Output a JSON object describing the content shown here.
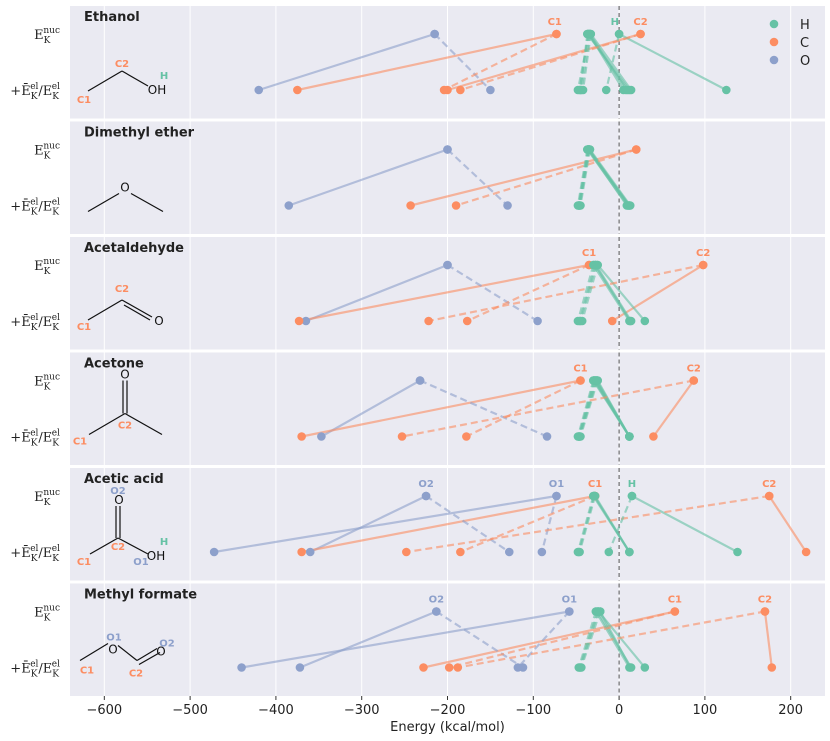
{
  "chart_data": {
    "type": "scatter",
    "xlabel": "Energy (kcal/mol)",
    "xlim": [
      -640,
      240
    ],
    "xticks": [
      -600,
      -500,
      -400,
      -300,
      -200,
      -100,
      0,
      100,
      200
    ],
    "xtick_labels": [
      "−600",
      "−500",
      "−400",
      "−300",
      "−200",
      "−100",
      "0",
      "100",
      "200"
    ],
    "row_labels": {
      "top": {
        "base": "E",
        "sub": "K",
        "sup": "nuc"
      },
      "bottom": {
        "prefix": "+",
        "base1": "Ē",
        "sub1": "K",
        "sup1": "el",
        "slash": "/",
        "base2": "E",
        "sub2": "K",
        "sup2": "el"
      }
    },
    "legend": [
      {
        "label": "H",
        "color": "#66c2a5"
      },
      {
        "label": "C",
        "color": "#fc8d62"
      },
      {
        "label": "O",
        "color": "#8da0cb"
      }
    ],
    "panels": [
      {
        "title": "Ethanol",
        "molecule_labels": [
          {
            "text": "C1",
            "color": "#fc8d62"
          },
          {
            "text": "C2",
            "color": "#fc8d62"
          },
          {
            "text": "H",
            "color": "#66c2a5"
          },
          {
            "text": "OH",
            "color": "#111111"
          }
        ],
        "point_labels": [
          {
            "text": "C1",
            "color": "#fc8d62",
            "x": -75
          },
          {
            "text": "H",
            "color": "#66c2a5",
            "x": -5
          },
          {
            "text": "C2",
            "color": "#fc8d62",
            "x": 25
          }
        ],
        "solid": [
          {
            "el": "O",
            "top": -215,
            "bottom": -420
          },
          {
            "el": "C",
            "top": -73,
            "bottom": -375
          },
          {
            "el": "C",
            "top": 25,
            "bottom": -200
          },
          {
            "el": "H",
            "top": -35,
            "bottom": 5
          },
          {
            "el": "H",
            "top": -36,
            "bottom": 10
          },
          {
            "el": "H",
            "top": -37,
            "bottom": 12
          },
          {
            "el": "H",
            "top": -34,
            "bottom": 8
          },
          {
            "el": "H",
            "top": -33,
            "bottom": 14
          },
          {
            "el": "H",
            "top": 0,
            "bottom": 125
          }
        ],
        "dashed": [
          {
            "el": "O",
            "top": -215,
            "bottom": -150
          },
          {
            "el": "C",
            "top": -73,
            "bottom": -204
          },
          {
            "el": "C",
            "top": 25,
            "bottom": -185
          },
          {
            "el": "H",
            "top": -35,
            "bottom": -48
          },
          {
            "el": "H",
            "top": -36,
            "bottom": -46
          },
          {
            "el": "H",
            "top": -37,
            "bottom": -45
          },
          {
            "el": "H",
            "top": -34,
            "bottom": -44
          },
          {
            "el": "H",
            "top": -33,
            "bottom": -42
          },
          {
            "el": "H",
            "top": 0,
            "bottom": -15
          }
        ]
      },
      {
        "title": "Dimethyl ether",
        "molecule_labels": [
          {
            "text": "O",
            "color": "#111111"
          }
        ],
        "point_labels": [],
        "solid": [
          {
            "el": "O",
            "top": -200,
            "bottom": -385
          },
          {
            "el": "C",
            "top": 20,
            "bottom": -243
          },
          {
            "el": "H",
            "top": -37,
            "bottom": 10
          },
          {
            "el": "H",
            "top": -36,
            "bottom": 12
          },
          {
            "el": "H",
            "top": -35,
            "bottom": 11
          },
          {
            "el": "H",
            "top": -34,
            "bottom": 13
          },
          {
            "el": "H",
            "top": -36,
            "bottom": 9
          },
          {
            "el": "H",
            "top": -35,
            "bottom": 12
          }
        ],
        "dashed": [
          {
            "el": "O",
            "top": -200,
            "bottom": -130
          },
          {
            "el": "C",
            "top": 20,
            "bottom": -190
          },
          {
            "el": "H",
            "top": -37,
            "bottom": -48
          },
          {
            "el": "H",
            "top": -36,
            "bottom": -47
          },
          {
            "el": "H",
            "top": -35,
            "bottom": -46
          },
          {
            "el": "H",
            "top": -34,
            "bottom": -45
          },
          {
            "el": "H",
            "top": -36,
            "bottom": -47
          },
          {
            "el": "H",
            "top": -35,
            "bottom": -46
          }
        ]
      },
      {
        "title": "Acetaldehyde",
        "molecule_labels": [
          {
            "text": "C1",
            "color": "#fc8d62"
          },
          {
            "text": "C2",
            "color": "#fc8d62"
          },
          {
            "text": "O",
            "color": "#111111"
          }
        ],
        "point_labels": [
          {
            "text": "C1",
            "color": "#fc8d62",
            "x": -35
          },
          {
            "text": "C2",
            "color": "#fc8d62",
            "x": 98
          }
        ],
        "solid": [
          {
            "el": "O",
            "top": -200,
            "bottom": -365
          },
          {
            "el": "C",
            "top": -35,
            "bottom": -373
          },
          {
            "el": "C",
            "top": 98,
            "bottom": -8
          },
          {
            "el": "H",
            "top": -30,
            "bottom": 12
          },
          {
            "el": "H",
            "top": -28,
            "bottom": 13
          },
          {
            "el": "H",
            "top": -27,
            "bottom": 14
          },
          {
            "el": "H",
            "top": -25,
            "bottom": 30
          }
        ],
        "dashed": [
          {
            "el": "O",
            "top": -200,
            "bottom": -95
          },
          {
            "el": "C",
            "top": -35,
            "bottom": -177
          },
          {
            "el": "C",
            "top": 98,
            "bottom": -222
          },
          {
            "el": "H",
            "top": -30,
            "bottom": -48
          },
          {
            "el": "H",
            "top": -28,
            "bottom": -46
          },
          {
            "el": "H",
            "top": -27,
            "bottom": -45
          },
          {
            "el": "H",
            "top": -25,
            "bottom": -43
          }
        ]
      },
      {
        "title": "Acetone",
        "molecule_labels": [
          {
            "text": "C1",
            "color": "#fc8d62"
          },
          {
            "text": "C2",
            "color": "#fc8d62"
          },
          {
            "text": "O",
            "color": "#111111"
          }
        ],
        "point_labels": [
          {
            "text": "C1",
            "color": "#fc8d62",
            "x": -45
          },
          {
            "text": "C2",
            "color": "#fc8d62",
            "x": 87
          }
        ],
        "solid": [
          {
            "el": "O",
            "top": -232,
            "bottom": -347
          },
          {
            "el": "C",
            "top": -45,
            "bottom": -370
          },
          {
            "el": "C",
            "top": 87,
            "bottom": 40
          },
          {
            "el": "H",
            "top": -30,
            "bottom": 12
          },
          {
            "el": "H",
            "top": -29,
            "bottom": 12
          },
          {
            "el": "H",
            "top": -28,
            "bottom": 12
          },
          {
            "el": "H",
            "top": -27,
            "bottom": 12
          },
          {
            "el": "H",
            "top": -26,
            "bottom": 12
          },
          {
            "el": "H",
            "top": -25,
            "bottom": 12
          }
        ],
        "dashed": [
          {
            "el": "O",
            "top": -232,
            "bottom": -84
          },
          {
            "el": "C",
            "top": -45,
            "bottom": -178
          },
          {
            "el": "C",
            "top": 87,
            "bottom": -253
          },
          {
            "el": "H",
            "top": -30,
            "bottom": -48
          },
          {
            "el": "H",
            "top": -29,
            "bottom": -47
          },
          {
            "el": "H",
            "top": -28,
            "bottom": -47
          },
          {
            "el": "H",
            "top": -27,
            "bottom": -46
          },
          {
            "el": "H",
            "top": -26,
            "bottom": -46
          },
          {
            "el": "H",
            "top": -25,
            "bottom": -45
          }
        ]
      },
      {
        "title": "Acetic acid",
        "molecule_labels": [
          {
            "text": "O2",
            "color": "#8da0cb"
          },
          {
            "text": "O",
            "color": "#111111"
          },
          {
            "text": "C2",
            "color": "#fc8d62"
          },
          {
            "text": "OH",
            "color": "#111111"
          },
          {
            "text": "H",
            "color": "#66c2a5"
          },
          {
            "text": "C1",
            "color": "#fc8d62"
          },
          {
            "text": "O1",
            "color": "#8da0cb"
          }
        ],
        "point_labels": [
          {
            "text": "O2",
            "color": "#8da0cb",
            "x": -225
          },
          {
            "text": "O1",
            "color": "#8da0cb",
            "x": -73
          },
          {
            "text": "C1",
            "color": "#fc8d62",
            "x": -28
          },
          {
            "text": "H",
            "color": "#66c2a5",
            "x": 15
          },
          {
            "text": "C2",
            "color": "#fc8d62",
            "x": 175
          }
        ],
        "solid": [
          {
            "el": "O",
            "top": -73,
            "bottom": -472
          },
          {
            "el": "O",
            "top": -225,
            "bottom": -360
          },
          {
            "el": "C",
            "top": -28,
            "bottom": -370
          },
          {
            "el": "C",
            "top": 175,
            "bottom": 218
          },
          {
            "el": "H",
            "top": -30,
            "bottom": 12
          },
          {
            "el": "H",
            "top": -29,
            "bottom": 12
          },
          {
            "el": "H",
            "top": -28,
            "bottom": 12
          },
          {
            "el": "H",
            "top": 15,
            "bottom": 138
          }
        ],
        "dashed": [
          {
            "el": "O",
            "top": -225,
            "bottom": -128
          },
          {
            "el": "O",
            "top": -73,
            "bottom": -90
          },
          {
            "el": "C",
            "top": -28,
            "bottom": -185
          },
          {
            "el": "C",
            "top": 175,
            "bottom": -248
          },
          {
            "el": "H",
            "top": -30,
            "bottom": -48
          },
          {
            "el": "H",
            "top": -29,
            "bottom": -47
          },
          {
            "el": "H",
            "top": -28,
            "bottom": -46
          },
          {
            "el": "H",
            "top": 15,
            "bottom": -12
          }
        ]
      },
      {
        "title": "Methyl formate",
        "molecule_labels": [
          {
            "text": "O1",
            "color": "#8da0cb"
          },
          {
            "text": "O",
            "color": "#111111"
          },
          {
            "text": "O2",
            "color": "#8da0cb"
          },
          {
            "text": "O",
            "color": "#111111"
          },
          {
            "text": "C1",
            "color": "#fc8d62"
          },
          {
            "text": "C2",
            "color": "#fc8d62"
          }
        ],
        "point_labels": [
          {
            "text": "O2",
            "color": "#8da0cb",
            "x": -213
          },
          {
            "text": "O1",
            "color": "#8da0cb",
            "x": -58
          },
          {
            "text": "C1",
            "color": "#fc8d62",
            "x": 65
          },
          {
            "text": "C2",
            "color": "#fc8d62",
            "x": 170
          }
        ],
        "solid": [
          {
            "el": "O",
            "top": -58,
            "bottom": -440
          },
          {
            "el": "O",
            "top": -213,
            "bottom": -372
          },
          {
            "el": "C",
            "top": 65,
            "bottom": -228
          },
          {
            "el": "C",
            "top": 170,
            "bottom": 178
          },
          {
            "el": "H",
            "top": -27,
            "bottom": 12
          },
          {
            "el": "H",
            "top": -25,
            "bottom": 14
          },
          {
            "el": "H",
            "top": -24,
            "bottom": 30
          },
          {
            "el": "H",
            "top": -22,
            "bottom": 13
          }
        ],
        "dashed": [
          {
            "el": "O",
            "top": -213,
            "bottom": -112
          },
          {
            "el": "O",
            "top": -58,
            "bottom": -118
          },
          {
            "el": "C",
            "top": 65,
            "bottom": -198
          },
          {
            "el": "C",
            "top": 170,
            "bottom": -188
          },
          {
            "el": "H",
            "top": -27,
            "bottom": -47
          },
          {
            "el": "H",
            "top": -25,
            "bottom": -46
          },
          {
            "el": "H",
            "top": -24,
            "bottom": -45
          },
          {
            "el": "H",
            "top": -22,
            "bottom": -44
          }
        ]
      }
    ]
  }
}
